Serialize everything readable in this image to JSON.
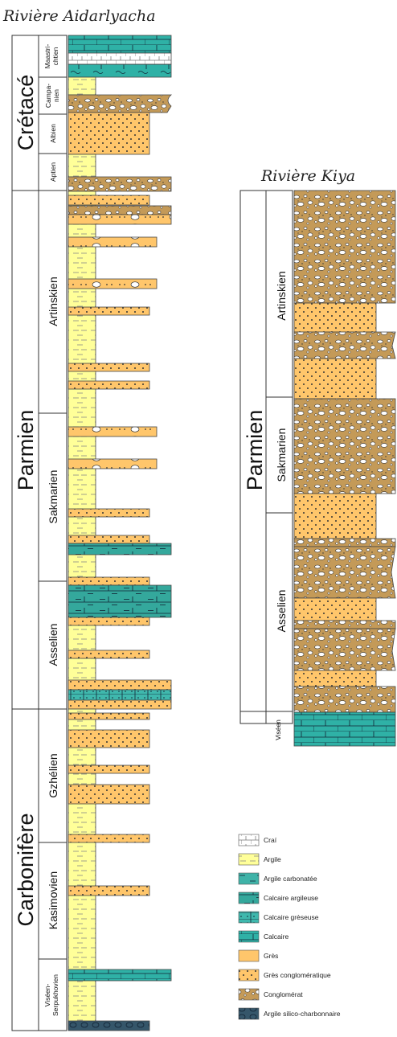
{
  "titles": {
    "left": "Rivière Aidarlyacha",
    "right": "Rivière Kiya"
  },
  "left_column": {
    "periods": [
      "Crétacé",
      "Parmien",
      "Carbonifère"
    ],
    "stages": [
      "Maastri-chtien",
      "Campa-nien",
      "Albien",
      "Aptien",
      "Artinskien",
      "Sakmarien",
      "Asselien",
      "Gzhélien",
      "Kasimovien",
      "Viséen-Serpukhovien"
    ]
  },
  "right_column": {
    "periods": [
      "Parmien"
    ],
    "stages": [
      "Artinskien",
      "Sakmarien",
      "Asselien",
      "Viséen"
    ]
  },
  "legend": [
    {
      "label": "Craí",
      "swatch": "crai",
      "color": "#ffffff"
    },
    {
      "label": "Argile",
      "swatch": "argile",
      "color": "#ffff99"
    },
    {
      "label": "Argile carbonatée",
      "swatch": "argcarb",
      "color": "#3fb3a8"
    },
    {
      "label": "Calcaire argileuse",
      "swatch": "calcarg",
      "color": "#34a89c"
    },
    {
      "label": "Calcaire grèseuse",
      "swatch": "calcgres",
      "color": "#3fb8ad"
    },
    {
      "label": "Calcaire",
      "swatch": "calc",
      "color": "#2fb1a6"
    },
    {
      "label": "Grès",
      "swatch": "gres",
      "color": "#ffc66b"
    },
    {
      "label": "Grès conglomératique",
      "swatch": "gresconglo",
      "color": "#ffc66b"
    },
    {
      "label": "Conglomérat",
      "swatch": "conglo",
      "color": "#c8a060"
    },
    {
      "label": "Argile silico-charbonnaire",
      "swatch": "silico",
      "color": "#35566a"
    }
  ]
}
